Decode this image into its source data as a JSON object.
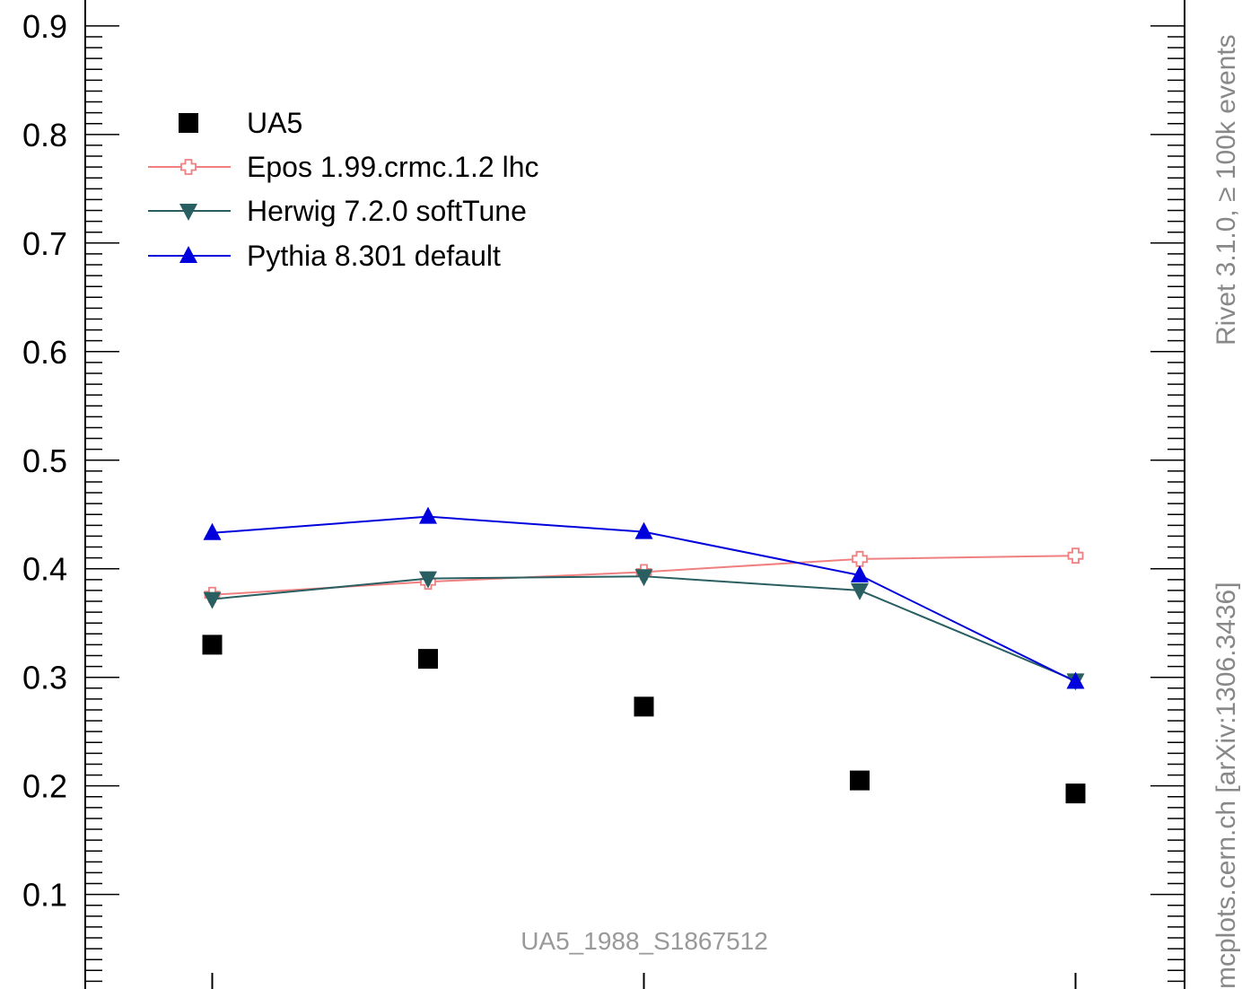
{
  "chart_data": {
    "type": "line",
    "title": "",
    "xlabel": "",
    "ylabel": "",
    "x": [
      1,
      2,
      3,
      4,
      5
    ],
    "xlim": [
      0.5,
      5.5
    ],
    "ylim": [
      0.0,
      0.9
    ],
    "yticks": [
      0.1,
      0.2,
      0.3,
      0.4,
      0.5,
      0.6,
      0.7,
      0.8,
      0.9
    ],
    "ytick_labels": [
      "0.1",
      "0.2",
      "0.3",
      "0.4",
      "0.5",
      "0.6",
      "0.7",
      "0.8",
      "0.9"
    ],
    "legend_position": "top-left",
    "series": [
      {
        "name": "UA5",
        "marker": "square",
        "line": false,
        "color": "#000000",
        "values": [
          0.33,
          0.317,
          0.273,
          0.205,
          0.193
        ]
      },
      {
        "name": "Epos 1.99.crmc.1.2 lhc",
        "marker": "open-cross",
        "line": true,
        "color": "#f08080",
        "values": [
          0.376,
          0.388,
          0.397,
          0.409,
          0.412
        ]
      },
      {
        "name": "Herwig 7.2.0 softTune",
        "marker": "triangle-down",
        "line": true,
        "color": "#2a5f62",
        "values": [
          0.372,
          0.391,
          0.393,
          0.38,
          0.297
        ]
      },
      {
        "name": "Pythia 8.301 default",
        "marker": "triangle-up",
        "line": true,
        "color": "#0000dd",
        "values": [
          0.433,
          0.448,
          0.434,
          0.394,
          0.296
        ]
      }
    ],
    "annotation": "UA5_1988_S1867512",
    "side_label_bottom": "mcplots.cern.ch [arXiv:1306.3436]",
    "side_label_top": "Rivet 3.1.0, ≥ 100k events"
  }
}
